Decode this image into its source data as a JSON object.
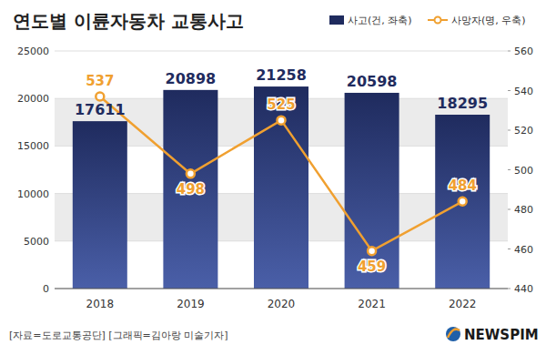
{
  "chart_data": {
    "type": "bar",
    "title": "연도별 이륜자동차 교통사고",
    "categories": [
      "2018",
      "2019",
      "2020",
      "2021",
      "2022"
    ],
    "series": [
      {
        "name": "사고(건, 좌축)",
        "type": "bar",
        "color": "#1f2b5e",
        "values": [
          17611,
          20898,
          21258,
          20598,
          18295
        ]
      },
      {
        "name": "사망자(명, 우축)",
        "type": "line",
        "axis": "y2",
        "color": "#f0a030",
        "marker": "circle",
        "values": [
          537,
          498,
          525,
          459,
          484
        ]
      }
    ],
    "ylim": [
      0,
      25000
    ],
    "yticks": [
      0,
      5000,
      10000,
      15000,
      20000,
      25000
    ],
    "y2lim": [
      440,
      560
    ],
    "y2ticks": [
      440,
      460,
      480,
      500,
      520,
      540,
      560
    ],
    "grid": true,
    "data_labels": true,
    "legend": "top-right",
    "source": "[자료=도로교통공단] [그래픽=김아랑 미술기자]",
    "logo": "NEWSPIM"
  }
}
